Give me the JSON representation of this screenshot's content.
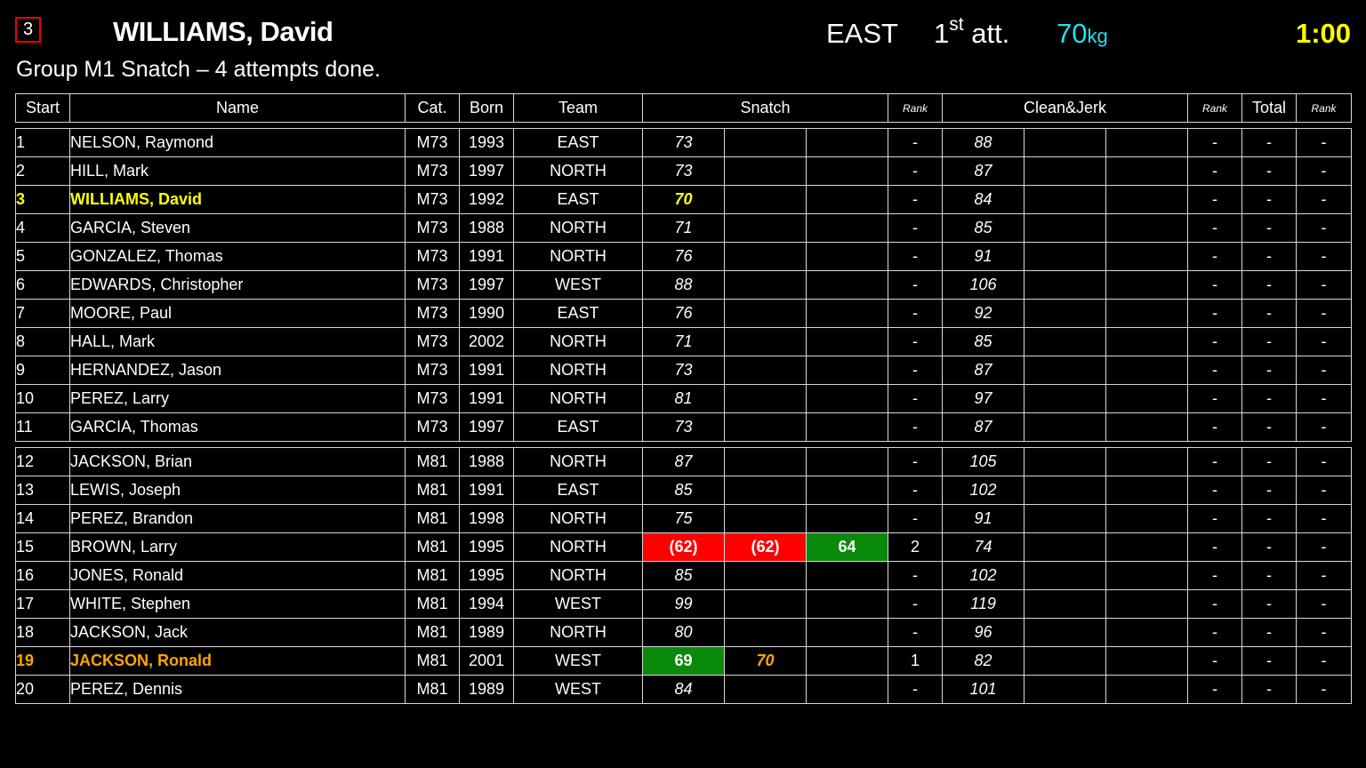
{
  "header": {
    "start_number": "3",
    "athlete_name": "WILLIAMS, David",
    "team": "EAST",
    "attempt_number": "1",
    "attempt_suffix": "st",
    "attempt_label": "att.",
    "weight": "70",
    "weight_unit": "kg",
    "timer": "1:00",
    "group_info": "Group M1 Snatch – 4 attempts done."
  },
  "colors": {
    "current_athlete": "#ffff00",
    "next_athlete": "#ffa500",
    "good_lift": "#0a8a0a",
    "no_lift": "#ff0000",
    "weight": "#22e0f0",
    "timer": "#ffff00"
  },
  "columns": {
    "start": "Start",
    "name": "Name",
    "cat": "Cat.",
    "born": "Born",
    "team": "Team",
    "snatch": "Snatch",
    "snatch_rank": "Rank",
    "cj": "Clean&Jerk",
    "cj_rank": "Rank",
    "total": "Total",
    "total_rank": "Rank"
  },
  "groups": [
    {
      "rows": [
        {
          "start": "1",
          "name": "NELSON, Raymond",
          "cat": "M73",
          "born": "1993",
          "team": "EAST",
          "sn": [
            {
              "v": "73",
              "s": "req"
            },
            {
              "v": "",
              "s": ""
            },
            {
              "v": "",
              "s": ""
            }
          ],
          "sn_rank": "-",
          "cj": [
            {
              "v": "88",
              "s": "req"
            },
            {
              "v": "",
              "s": ""
            },
            {
              "v": "",
              "s": ""
            }
          ],
          "cj_rank": "-",
          "total": "-",
          "total_rank": "-"
        },
        {
          "start": "2",
          "name": "HILL, Mark",
          "cat": "M73",
          "born": "1997",
          "team": "NORTH",
          "sn": [
            {
              "v": "73",
              "s": "req"
            },
            {
              "v": "",
              "s": ""
            },
            {
              "v": "",
              "s": ""
            }
          ],
          "sn_rank": "-",
          "cj": [
            {
              "v": "87",
              "s": "req"
            },
            {
              "v": "",
              "s": ""
            },
            {
              "v": "",
              "s": ""
            }
          ],
          "cj_rank": "-",
          "total": "-",
          "total_rank": "-"
        },
        {
          "start": "3",
          "name": "WILLIAMS, David",
          "cat": "M73",
          "born": "1992",
          "team": "EAST",
          "state": "current",
          "sn": [
            {
              "v": "70",
              "s": "req"
            },
            {
              "v": "",
              "s": ""
            },
            {
              "v": "",
              "s": ""
            }
          ],
          "sn_rank": "-",
          "cj": [
            {
              "v": "84",
              "s": "req"
            },
            {
              "v": "",
              "s": ""
            },
            {
              "v": "",
              "s": ""
            }
          ],
          "cj_rank": "-",
          "total": "-",
          "total_rank": "-"
        },
        {
          "start": "4",
          "name": "GARCIA, Steven",
          "cat": "M73",
          "born": "1988",
          "team": "NORTH",
          "sn": [
            {
              "v": "71",
              "s": "req"
            },
            {
              "v": "",
              "s": ""
            },
            {
              "v": "",
              "s": ""
            }
          ],
          "sn_rank": "-",
          "cj": [
            {
              "v": "85",
              "s": "req"
            },
            {
              "v": "",
              "s": ""
            },
            {
              "v": "",
              "s": ""
            }
          ],
          "cj_rank": "-",
          "total": "-",
          "total_rank": "-"
        },
        {
          "start": "5",
          "name": "GONZALEZ, Thomas",
          "cat": "M73",
          "born": "1991",
          "team": "NORTH",
          "sn": [
            {
              "v": "76",
              "s": "req"
            },
            {
              "v": "",
              "s": ""
            },
            {
              "v": "",
              "s": ""
            }
          ],
          "sn_rank": "-",
          "cj": [
            {
              "v": "91",
              "s": "req"
            },
            {
              "v": "",
              "s": ""
            },
            {
              "v": "",
              "s": ""
            }
          ],
          "cj_rank": "-",
          "total": "-",
          "total_rank": "-"
        },
        {
          "start": "6",
          "name": "EDWARDS, Christopher",
          "cat": "M73",
          "born": "1997",
          "team": "WEST",
          "sn": [
            {
              "v": "88",
              "s": "req"
            },
            {
              "v": "",
              "s": ""
            },
            {
              "v": "",
              "s": ""
            }
          ],
          "sn_rank": "-",
          "cj": [
            {
              "v": "106",
              "s": "req"
            },
            {
              "v": "",
              "s": ""
            },
            {
              "v": "",
              "s": ""
            }
          ],
          "cj_rank": "-",
          "total": "-",
          "total_rank": "-"
        },
        {
          "start": "7",
          "name": "MOORE, Paul",
          "cat": "M73",
          "born": "1990",
          "team": "EAST",
          "sn": [
            {
              "v": "76",
              "s": "req"
            },
            {
              "v": "",
              "s": ""
            },
            {
              "v": "",
              "s": ""
            }
          ],
          "sn_rank": "-",
          "cj": [
            {
              "v": "92",
              "s": "req"
            },
            {
              "v": "",
              "s": ""
            },
            {
              "v": "",
              "s": ""
            }
          ],
          "cj_rank": "-",
          "total": "-",
          "total_rank": "-"
        },
        {
          "start": "8",
          "name": "HALL, Mark",
          "cat": "M73",
          "born": "2002",
          "team": "NORTH",
          "sn": [
            {
              "v": "71",
              "s": "req"
            },
            {
              "v": "",
              "s": ""
            },
            {
              "v": "",
              "s": ""
            }
          ],
          "sn_rank": "-",
          "cj": [
            {
              "v": "85",
              "s": "req"
            },
            {
              "v": "",
              "s": ""
            },
            {
              "v": "",
              "s": ""
            }
          ],
          "cj_rank": "-",
          "total": "-",
          "total_rank": "-"
        },
        {
          "start": "9",
          "name": "HERNANDEZ, Jason",
          "cat": "M73",
          "born": "1991",
          "team": "NORTH",
          "sn": [
            {
              "v": "73",
              "s": "req"
            },
            {
              "v": "",
              "s": ""
            },
            {
              "v": "",
              "s": ""
            }
          ],
          "sn_rank": "-",
          "cj": [
            {
              "v": "87",
              "s": "req"
            },
            {
              "v": "",
              "s": ""
            },
            {
              "v": "",
              "s": ""
            }
          ],
          "cj_rank": "-",
          "total": "-",
          "total_rank": "-"
        },
        {
          "start": "10",
          "name": "PEREZ, Larry",
          "cat": "M73",
          "born": "1991",
          "team": "NORTH",
          "sn": [
            {
              "v": "81",
              "s": "req"
            },
            {
              "v": "",
              "s": ""
            },
            {
              "v": "",
              "s": ""
            }
          ],
          "sn_rank": "-",
          "cj": [
            {
              "v": "97",
              "s": "req"
            },
            {
              "v": "",
              "s": ""
            },
            {
              "v": "",
              "s": ""
            }
          ],
          "cj_rank": "-",
          "total": "-",
          "total_rank": "-"
        },
        {
          "start": "11",
          "name": "GARCIA, Thomas",
          "cat": "M73",
          "born": "1997",
          "team": "EAST",
          "sn": [
            {
              "v": "73",
              "s": "req"
            },
            {
              "v": "",
              "s": ""
            },
            {
              "v": "",
              "s": ""
            }
          ],
          "sn_rank": "-",
          "cj": [
            {
              "v": "87",
              "s": "req"
            },
            {
              "v": "",
              "s": ""
            },
            {
              "v": "",
              "s": ""
            }
          ],
          "cj_rank": "-",
          "total": "-",
          "total_rank": "-"
        }
      ]
    },
    {
      "rows": [
        {
          "start": "12",
          "name": "JACKSON, Brian",
          "cat": "M81",
          "born": "1988",
          "team": "NORTH",
          "sn": [
            {
              "v": "87",
              "s": "req"
            },
            {
              "v": "",
              "s": ""
            },
            {
              "v": "",
              "s": ""
            }
          ],
          "sn_rank": "-",
          "cj": [
            {
              "v": "105",
              "s": "req"
            },
            {
              "v": "",
              "s": ""
            },
            {
              "v": "",
              "s": ""
            }
          ],
          "cj_rank": "-",
          "total": "-",
          "total_rank": "-"
        },
        {
          "start": "13",
          "name": "LEWIS, Joseph",
          "cat": "M81",
          "born": "1991",
          "team": "EAST",
          "sn": [
            {
              "v": "85",
              "s": "req"
            },
            {
              "v": "",
              "s": ""
            },
            {
              "v": "",
              "s": ""
            }
          ],
          "sn_rank": "-",
          "cj": [
            {
              "v": "102",
              "s": "req"
            },
            {
              "v": "",
              "s": ""
            },
            {
              "v": "",
              "s": ""
            }
          ],
          "cj_rank": "-",
          "total": "-",
          "total_rank": "-"
        },
        {
          "start": "14",
          "name": "PEREZ, Brandon",
          "cat": "M81",
          "born": "1998",
          "team": "NORTH",
          "sn": [
            {
              "v": "75",
              "s": "req"
            },
            {
              "v": "",
              "s": ""
            },
            {
              "v": "",
              "s": ""
            }
          ],
          "sn_rank": "-",
          "cj": [
            {
              "v": "91",
              "s": "req"
            },
            {
              "v": "",
              "s": ""
            },
            {
              "v": "",
              "s": ""
            }
          ],
          "cj_rank": "-",
          "total": "-",
          "total_rank": "-"
        },
        {
          "start": "15",
          "name": "BROWN, Larry",
          "cat": "M81",
          "born": "1995",
          "team": "NORTH",
          "sn": [
            {
              "v": "(62)",
              "s": "bad"
            },
            {
              "v": "(62)",
              "s": "bad"
            },
            {
              "v": "64",
              "s": "good"
            }
          ],
          "sn_rank": "2",
          "cj": [
            {
              "v": "74",
              "s": "req"
            },
            {
              "v": "",
              "s": ""
            },
            {
              "v": "",
              "s": ""
            }
          ],
          "cj_rank": "-",
          "total": "-",
          "total_rank": "-"
        },
        {
          "start": "16",
          "name": "JONES, Ronald",
          "cat": "M81",
          "born": "1995",
          "team": "NORTH",
          "sn": [
            {
              "v": "85",
              "s": "req"
            },
            {
              "v": "",
              "s": ""
            },
            {
              "v": "",
              "s": ""
            }
          ],
          "sn_rank": "-",
          "cj": [
            {
              "v": "102",
              "s": "req"
            },
            {
              "v": "",
              "s": ""
            },
            {
              "v": "",
              "s": ""
            }
          ],
          "cj_rank": "-",
          "total": "-",
          "total_rank": "-"
        },
        {
          "start": "17",
          "name": "WHITE, Stephen",
          "cat": "M81",
          "born": "1994",
          "team": "WEST",
          "sn": [
            {
              "v": "99",
              "s": "req"
            },
            {
              "v": "",
              "s": ""
            },
            {
              "v": "",
              "s": ""
            }
          ],
          "sn_rank": "-",
          "cj": [
            {
              "v": "119",
              "s": "req"
            },
            {
              "v": "",
              "s": ""
            },
            {
              "v": "",
              "s": ""
            }
          ],
          "cj_rank": "-",
          "total": "-",
          "total_rank": "-"
        },
        {
          "start": "18",
          "name": "JACKSON, Jack",
          "cat": "M81",
          "born": "1989",
          "team": "NORTH",
          "sn": [
            {
              "v": "80",
              "s": "req"
            },
            {
              "v": "",
              "s": ""
            },
            {
              "v": "",
              "s": ""
            }
          ],
          "sn_rank": "-",
          "cj": [
            {
              "v": "96",
              "s": "req"
            },
            {
              "v": "",
              "s": ""
            },
            {
              "v": "",
              "s": ""
            }
          ],
          "cj_rank": "-",
          "total": "-",
          "total_rank": "-"
        },
        {
          "start": "19",
          "name": "JACKSON, Ronald",
          "cat": "M81",
          "born": "2001",
          "team": "WEST",
          "state": "next",
          "sn": [
            {
              "v": "69",
              "s": "good"
            },
            {
              "v": "70",
              "s": "req"
            },
            {
              "v": "",
              "s": ""
            }
          ],
          "sn_rank": "1",
          "cj": [
            {
              "v": "82",
              "s": "req"
            },
            {
              "v": "",
              "s": ""
            },
            {
              "v": "",
              "s": ""
            }
          ],
          "cj_rank": "-",
          "total": "-",
          "total_rank": "-"
        },
        {
          "start": "20",
          "name": "PEREZ, Dennis",
          "cat": "M81",
          "born": "1989",
          "team": "WEST",
          "sn": [
            {
              "v": "84",
              "s": "req"
            },
            {
              "v": "",
              "s": ""
            },
            {
              "v": "",
              "s": ""
            }
          ],
          "sn_rank": "-",
          "cj": [
            {
              "v": "101",
              "s": "req"
            },
            {
              "v": "",
              "s": ""
            },
            {
              "v": "",
              "s": ""
            }
          ],
          "cj_rank": "-",
          "total": "-",
          "total_rank": "-"
        }
      ]
    }
  ]
}
